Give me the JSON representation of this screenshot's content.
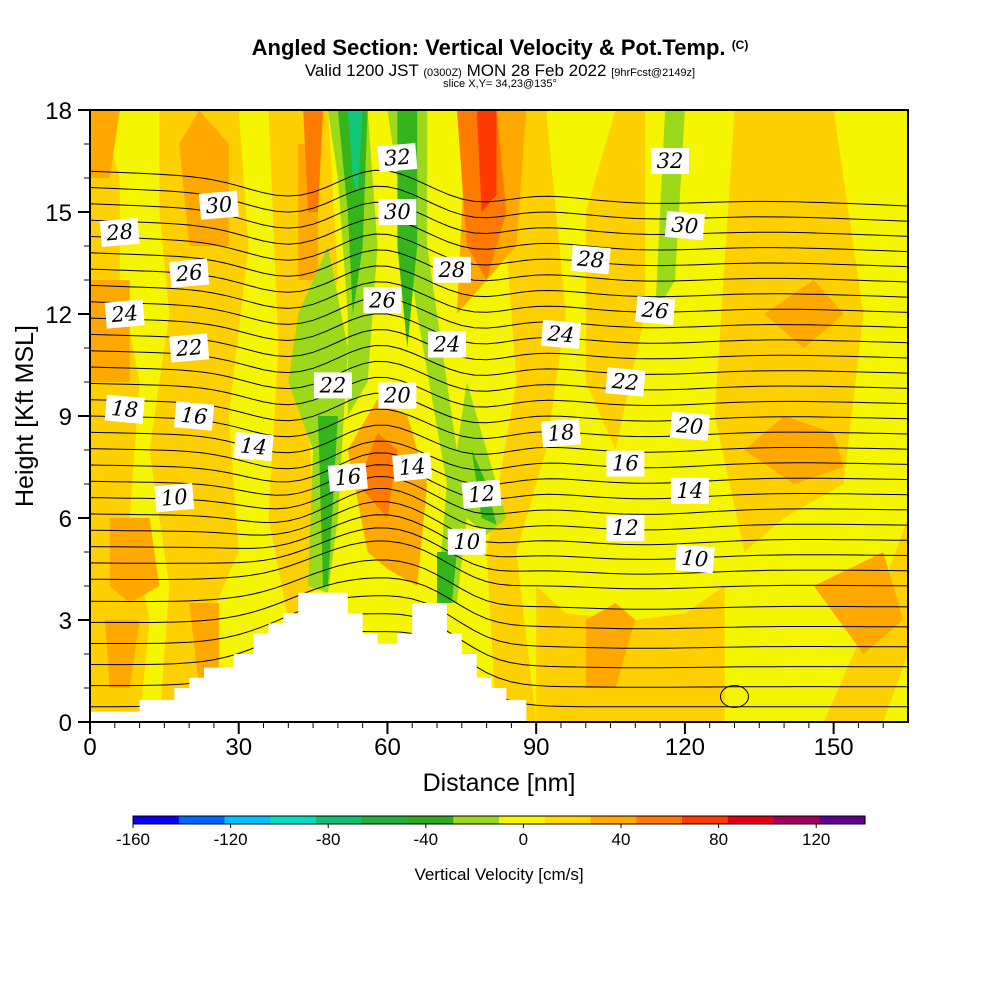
{
  "header": {
    "title": "Angled Section: Vertical Velocity & Pot.Temp.",
    "title_tag": "(C)",
    "valid_prefix": "Valid 1200 JST",
    "valid_zulu": "(0300Z)",
    "valid_date": "MON 28 Feb 2022",
    "forecast": "[9hrFcst@2149z]",
    "slice": "slice X,Y= 34,23@135°"
  },
  "colors": {
    "fill_yellow": "#f5f500",
    "fill_gold": "#ffd000",
    "fill_orange": "#ffa800",
    "fill_darkorange": "#ff7a00",
    "fill_red": "#ff3a00",
    "fill_lightgreen": "#9bd91a",
    "fill_green": "#35b51c",
    "fill_teal": "#10c878",
    "terrain": "#ffffff"
  },
  "chart_data": {
    "type": "heatmap",
    "xlabel": "Distance [nm]",
    "ylabel": "Height [Kft MSL]",
    "xlim": [
      0,
      165
    ],
    "ylim": [
      0,
      18
    ],
    "xticks": [
      "0",
      "30",
      "60",
      "90",
      "120",
      "150"
    ],
    "yticks": [
      "0",
      "3",
      "6",
      "9",
      "12",
      "15",
      "18"
    ],
    "xtick_values": [
      0,
      30,
      60,
      90,
      120,
      150
    ],
    "ytick_values": [
      0,
      3,
      6,
      9,
      12,
      15,
      18
    ],
    "colorbar": {
      "label": "Vertical Velocity [cm/s]",
      "ticks": [
        "-160",
        "-120",
        "-80",
        "-40",
        "0",
        "40",
        "80",
        "120"
      ],
      "tick_values": [
        -160,
        -120,
        -80,
        -40,
        0,
        40,
        80,
        120
      ],
      "range": [
        -160,
        140
      ],
      "colors": [
        "#0a00f0",
        "#0066ff",
        "#00c0ff",
        "#00e0c0",
        "#10c070",
        "#22b040",
        "#30a820",
        "#9bd91a",
        "#f5f500",
        "#ffd800",
        "#ffa800",
        "#ff7a00",
        "#ff3a00",
        "#e00018",
        "#a00058",
        "#600090"
      ]
    },
    "terrain_profile": [
      [
        0,
        0.3
      ],
      [
        10,
        0.3
      ],
      [
        10,
        0.65
      ],
      [
        17,
        0.65
      ],
      [
        17,
        1.0
      ],
      [
        20,
        1.0
      ],
      [
        20,
        1.3
      ],
      [
        23,
        1.3
      ],
      [
        23,
        1.6
      ],
      [
        29,
        1.6
      ],
      [
        29,
        2.0
      ],
      [
        33,
        2.0
      ],
      [
        33,
        2.6
      ],
      [
        36,
        2.6
      ],
      [
        36,
        2.9
      ],
      [
        39,
        2.9
      ],
      [
        39,
        3.2
      ],
      [
        42,
        3.2
      ],
      [
        42,
        3.8
      ],
      [
        52,
        3.8
      ],
      [
        52,
        3.2
      ],
      [
        55,
        3.2
      ],
      [
        55,
        2.6
      ],
      [
        58,
        2.6
      ],
      [
        58,
        2.3
      ],
      [
        62,
        2.3
      ],
      [
        62,
        2.6
      ],
      [
        65,
        2.6
      ],
      [
        65,
        3.5
      ],
      [
        72,
        3.5
      ],
      [
        72,
        2.6
      ],
      [
        75,
        2.6
      ],
      [
        75,
        2.0
      ],
      [
        78,
        2.0
      ],
      [
        78,
        1.3
      ],
      [
        81,
        1.3
      ],
      [
        81,
        1.0
      ],
      [
        84,
        1.0
      ],
      [
        84,
        0.65
      ],
      [
        88,
        0.65
      ],
      [
        88,
        0.3
      ]
    ],
    "theta_contour_labels": [
      {
        "value": "10",
        "x": 17,
        "y": 6.6
      },
      {
        "value": "10",
        "x": 76,
        "y": 5.3
      },
      {
        "value": "10",
        "x": 122,
        "y": 4.8
      },
      {
        "value": "12",
        "x": 79,
        "y": 6.7
      },
      {
        "value": "12",
        "x": 108,
        "y": 5.7
      },
      {
        "value": "14",
        "x": 33,
        "y": 8.1
      },
      {
        "value": "14",
        "x": 65,
        "y": 7.5
      },
      {
        "value": "14",
        "x": 121,
        "y": 6.8
      },
      {
        "value": "16",
        "x": 21,
        "y": 9.0
      },
      {
        "value": "16",
        "x": 52,
        "y": 7.2
      },
      {
        "value": "16",
        "x": 108,
        "y": 7.6
      },
      {
        "value": "18",
        "x": 7,
        "y": 9.2
      },
      {
        "value": "18",
        "x": 95,
        "y": 8.5
      },
      {
        "value": "20",
        "x": 62,
        "y": 9.6
      },
      {
        "value": "20",
        "x": 121,
        "y": 8.7
      },
      {
        "value": "22",
        "x": 20,
        "y": 11.0
      },
      {
        "value": "22",
        "x": 49,
        "y": 9.9
      },
      {
        "value": "22",
        "x": 108,
        "y": 10.0
      },
      {
        "value": "24",
        "x": 7,
        "y": 12.0
      },
      {
        "value": "24",
        "x": 72,
        "y": 11.1
      },
      {
        "value": "24",
        "x": 95,
        "y": 11.4
      },
      {
        "value": "26",
        "x": 20,
        "y": 13.2
      },
      {
        "value": "26",
        "x": 59,
        "y": 12.4
      },
      {
        "value": "26",
        "x": 114,
        "y": 12.1
      },
      {
        "value": "28",
        "x": 6,
        "y": 14.4
      },
      {
        "value": "28",
        "x": 73,
        "y": 13.3
      },
      {
        "value": "28",
        "x": 101,
        "y": 13.6
      },
      {
        "value": "30",
        "x": 26,
        "y": 15.2
      },
      {
        "value": "30",
        "x": 62,
        "y": 15.0
      },
      {
        "value": "30",
        "x": 120,
        "y": 14.6
      },
      {
        "value": "32",
        "x": 62,
        "y": 16.6
      },
      {
        "value": "32",
        "x": 117,
        "y": 16.5
      }
    ]
  }
}
